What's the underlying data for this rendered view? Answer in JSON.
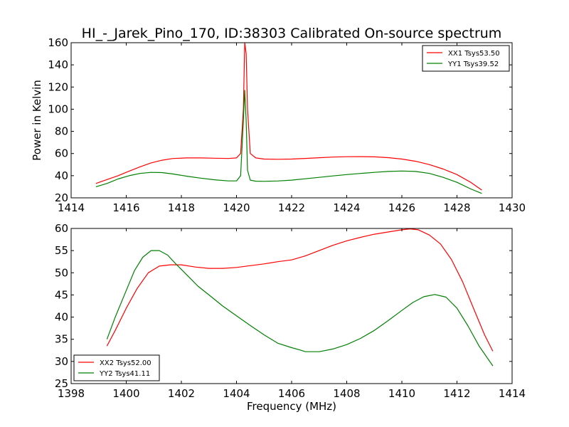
{
  "figure": {
    "title": "HI_-_Jarek_Pino_170, ID:38303 Calibrated On-source spectrum",
    "xlabel": "Frequency (MHz)",
    "ylabel": "Power in Kelvin"
  },
  "chart_data": [
    {
      "type": "line",
      "title": "HI_-_Jarek_Pino_170, ID:38303 Calibrated On-source spectrum",
      "xlabel": "",
      "ylabel": "Power in Kelvin",
      "xlim": [
        1414,
        1430
      ],
      "ylim": [
        20,
        160
      ],
      "xticks": [
        "1414",
        "1416",
        "1418",
        "1420",
        "1422",
        "1424",
        "1426",
        "1428",
        "1430"
      ],
      "yticks": [
        "20",
        "40",
        "60",
        "80",
        "100",
        "120",
        "140",
        "160"
      ],
      "grid": false,
      "legend_position": "top-right",
      "series": [
        {
          "name": "XX1 Tsys53.50",
          "color": "#ff0000",
          "x": [
            1414.9,
            1415.3,
            1415.7,
            1416.1,
            1416.5,
            1416.9,
            1417.3,
            1417.7,
            1418.2,
            1418.7,
            1419.2,
            1419.7,
            1420.0,
            1420.15,
            1420.25,
            1420.3,
            1420.35,
            1420.4,
            1420.5,
            1420.7,
            1421.0,
            1421.5,
            1422.0,
            1422.5,
            1423.0,
            1423.5,
            1424.0,
            1424.5,
            1425.0,
            1425.5,
            1426.0,
            1426.5,
            1427.0,
            1427.5,
            1428.0,
            1428.5,
            1428.9
          ],
          "y": [
            33,
            36.5,
            40,
            44,
            48,
            51.5,
            54,
            55.5,
            56,
            56,
            55.8,
            55.5,
            56,
            60,
            100,
            160,
            150,
            100,
            60,
            56,
            55,
            54.8,
            55,
            55.6,
            56.2,
            56.8,
            57.1,
            57.2,
            57,
            56.3,
            55,
            53,
            50,
            46,
            41,
            34,
            27
          ]
        },
        {
          "name": "YY1 Tsys39.52",
          "color": "#008000",
          "x": [
            1414.9,
            1415.3,
            1415.7,
            1416.1,
            1416.5,
            1416.9,
            1417.3,
            1417.7,
            1418.2,
            1418.7,
            1419.2,
            1419.7,
            1420.0,
            1420.15,
            1420.25,
            1420.3,
            1420.35,
            1420.4,
            1420.5,
            1420.7,
            1421.0,
            1421.5,
            1422.0,
            1422.5,
            1423.0,
            1423.5,
            1424.0,
            1424.5,
            1425.0,
            1425.5,
            1426.0,
            1426.5,
            1427.0,
            1427.5,
            1428.0,
            1428.5,
            1428.9
          ],
          "y": [
            30,
            33,
            37,
            40,
            42,
            43,
            42.8,
            41.5,
            39.5,
            37.8,
            36.3,
            35.3,
            35.3,
            40,
            90,
            117,
            90,
            45,
            36,
            35,
            34.9,
            35.2,
            36,
            37.2,
            38.5,
            39.8,
            41,
            42,
            43,
            43.8,
            44.2,
            43.8,
            42,
            38.5,
            34,
            28,
            24
          ]
        }
      ]
    },
    {
      "type": "line",
      "title": "",
      "xlabel": "Frequency (MHz)",
      "ylabel": "",
      "xlim": [
        1398,
        1414
      ],
      "ylim": [
        25,
        60
      ],
      "xticks": [
        "1398",
        "1400",
        "1402",
        "1404",
        "1406",
        "1408",
        "1410",
        "1412",
        "1414"
      ],
      "yticks": [
        "25",
        "30",
        "35",
        "40",
        "45",
        "50",
        "55",
        "60"
      ],
      "grid": false,
      "legend_position": "bottom-left",
      "series": [
        {
          "name": "XX2 Tsys52.00",
          "color": "#ff0000",
          "x": [
            1399.3,
            1399.6,
            1400.0,
            1400.4,
            1400.8,
            1401.2,
            1401.6,
            1402.0,
            1402.5,
            1403.0,
            1403.5,
            1404.0,
            1404.5,
            1405.0,
            1405.5,
            1406.0,
            1406.5,
            1407.0,
            1407.5,
            1408.0,
            1408.5,
            1409.0,
            1409.5,
            1410.0,
            1410.3,
            1410.6,
            1411.0,
            1411.4,
            1411.8,
            1412.2,
            1412.6,
            1413.0,
            1413.3
          ],
          "y": [
            33.5,
            37,
            42,
            46.5,
            50,
            51.5,
            51.8,
            51.8,
            51.3,
            51,
            51,
            51.2,
            51.6,
            52,
            52.5,
            52.9,
            53.8,
            55,
            56.2,
            57.2,
            58,
            58.7,
            59.2,
            59.7,
            59.9,
            59.7,
            58.5,
            56.5,
            53,
            48,
            42,
            36,
            32.3
          ]
        },
        {
          "name": "YY2 Tsys41.11",
          "color": "#008000",
          "x": [
            1399.3,
            1399.6,
            1400.0,
            1400.3,
            1400.6,
            1400.9,
            1401.2,
            1401.5,
            1401.8,
            1402.2,
            1402.6,
            1403.0,
            1403.5,
            1404.0,
            1404.5,
            1405.0,
            1405.5,
            1406.0,
            1406.3,
            1406.5,
            1407.0,
            1407.5,
            1408.0,
            1408.5,
            1409.0,
            1409.5,
            1410.0,
            1410.4,
            1410.8,
            1411.2,
            1411.6,
            1412.0,
            1412.4,
            1412.8,
            1413.3
          ],
          "y": [
            35,
            40,
            46,
            50.5,
            53.5,
            55,
            55,
            54,
            52,
            49.5,
            47,
            45,
            42.5,
            40.3,
            38.1,
            36,
            34.1,
            33.1,
            32.6,
            32.2,
            32.2,
            32.8,
            33.8,
            35.2,
            37,
            39.2,
            41.5,
            43.3,
            44.6,
            45.1,
            44.5,
            42,
            38,
            33.5,
            29
          ]
        }
      ]
    }
  ]
}
